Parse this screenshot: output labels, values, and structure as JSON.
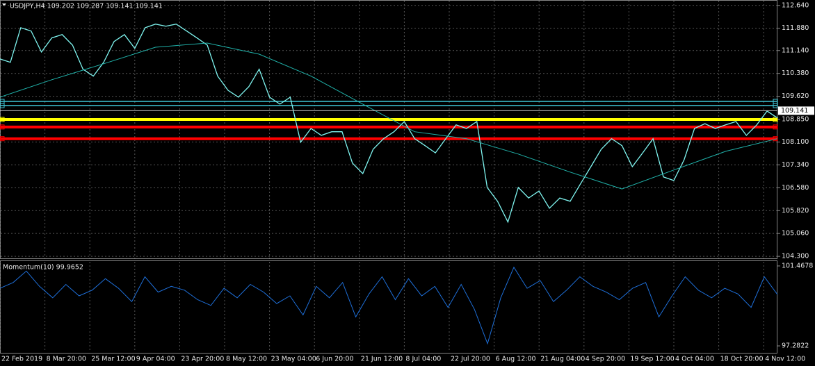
{
  "chart_data": [
    {
      "type": "line",
      "title": "USDJPY,H4  109.202 109.287 109.141 109.141",
      "ylim": [
        104.21,
        112.82
      ],
      "yticks": [
        {
          "value": 112.64,
          "label": "112.640"
        },
        {
          "value": 111.88,
          "label": "111.880"
        },
        {
          "value": 111.14,
          "label": "111.140"
        },
        {
          "value": 110.38,
          "label": "110.380"
        },
        {
          "value": 109.62,
          "label": "109.620"
        },
        {
          "value": 108.85,
          "label": "108.850"
        },
        {
          "value": 108.1,
          "label": "108.100"
        },
        {
          "value": 107.34,
          "label": "107.340"
        },
        {
          "value": 106.58,
          "label": "106.580"
        },
        {
          "value": 105.82,
          "label": "105.820"
        },
        {
          "value": 105.06,
          "label": "105.060"
        },
        {
          "value": 104.3,
          "label": "104.300"
        }
      ],
      "grid": true,
      "series": [
        {
          "color": "#7ff5f0",
          "values": [
            110.86,
            110.75,
            111.9,
            111.79,
            111.09,
            111.56,
            111.67,
            111.32,
            110.52,
            110.29,
            110.75,
            111.44,
            111.67,
            111.21,
            111.9,
            112.02,
            111.95,
            112.02,
            111.79,
            111.56,
            111.32,
            110.29,
            109.82,
            109.59,
            109.94,
            110.52,
            109.59,
            109.36,
            109.59,
            108.09,
            108.55,
            108.32,
            108.44,
            108.44,
            107.4,
            107.05,
            107.86,
            108.21,
            108.44,
            108.78,
            108.21,
            107.98,
            107.74,
            108.21,
            108.67,
            108.55,
            108.78,
            106.59,
            106.13,
            105.44,
            106.59,
            106.24,
            106.47,
            105.9,
            106.24,
            106.13,
            106.71,
            107.28,
            107.86,
            108.21,
            107.98,
            107.28,
            107.74,
            108.21,
            106.94,
            106.82,
            107.51,
            108.55,
            108.71,
            108.55,
            108.67,
            108.78,
            108.32,
            108.67,
            109.13,
            108.9
          ]
        },
        {
          "color": "#20b2aa",
          "values": [
            109.59,
            110.17,
            110.7,
            111.25,
            111.39,
            111.02,
            110.29,
            109.36,
            108.44,
            108.21,
            107.7,
            107.1,
            106.54,
            107.17,
            107.79,
            108.21
          ]
        }
      ],
      "levels": [
        {
          "value": 109.45,
          "color": "#3fc6d6"
        },
        {
          "value": 109.31,
          "color": "#3fc6d6"
        },
        {
          "value": 108.85,
          "color": "#ffff00"
        },
        {
          "value": 108.6,
          "color": "#ff0000"
        },
        {
          "value": 108.21,
          "color": "#ff0000"
        }
      ],
      "last_price": 109.141,
      "last_price_color": "#c0c0c0"
    },
    {
      "type": "line",
      "title": "Momentum(10) 99.9652",
      "ylim": [
        96.92,
        101.72
      ],
      "yticks": [
        101.4678,
        97.2822
      ],
      "grid": false,
      "series": [
        {
          "color": "#1e6fd9",
          "values": [
            100.3,
            100.6,
            101.2,
            100.4,
            99.8,
            100.5,
            99.9,
            100.2,
            100.8,
            100.3,
            99.6,
            100.9,
            100.1,
            100.4,
            100.2,
            99.7,
            99.4,
            100.3,
            99.8,
            100.5,
            100.1,
            99.5,
            99.9,
            98.9,
            100.4,
            99.8,
            100.6,
            98.8,
            100.0,
            100.9,
            99.7,
            100.8,
            99.9,
            100.4,
            99.3,
            100.5,
            99.2,
            97.4,
            99.8,
            101.4,
            100.3,
            100.7,
            99.6,
            100.2,
            100.9,
            100.4,
            100.1,
            99.7,
            100.3,
            100.6,
            98.8,
            99.9,
            100.9,
            100.2,
            99.8,
            100.3,
            100.0,
            99.3,
            100.9,
            99.97
          ]
        }
      ]
    }
  ],
  "time_axis": {
    "labels": [
      "22 Feb 2019",
      "8 Mar 20:00",
      "25 Mar 12:00",
      "9 Apr 04:00",
      "23 Apr 20:00",
      "8 May 12:00",
      "23 May 04:00",
      "6 Jun 20:00",
      "21 Jun 12:00",
      "8 Jul 04:00",
      "22 Jul 20:00",
      "6 Aug 12:00",
      "21 Aug 04:00",
      "4 Sep 20:00",
      "19 Sep 12:00",
      "4 Oct 04:00",
      "18 Oct 20:00",
      "4 Nov 12:00"
    ]
  }
}
